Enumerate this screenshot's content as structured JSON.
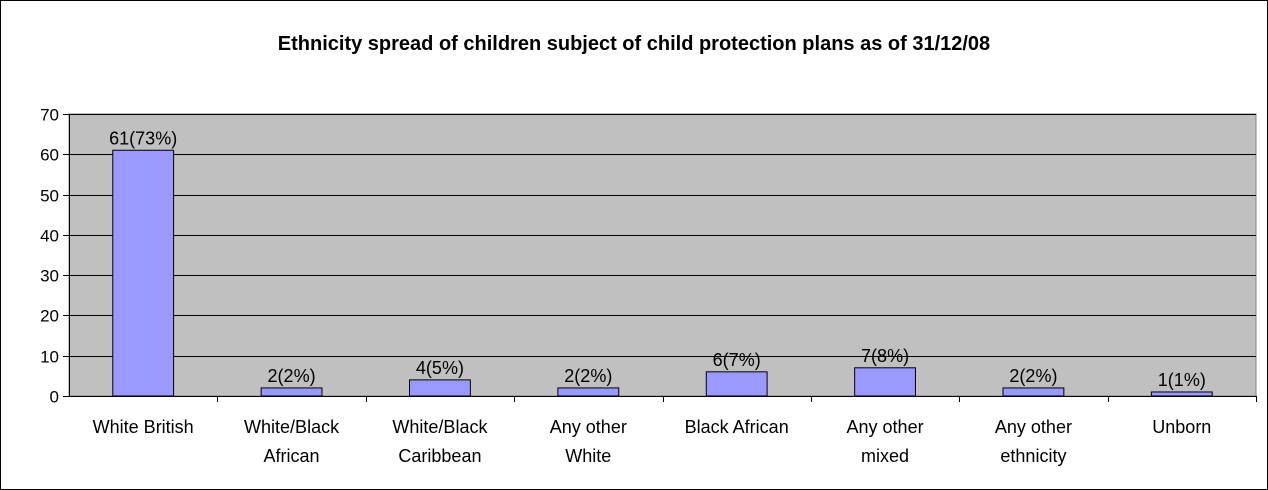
{
  "chart_data": {
    "type": "bar",
    "title": "Ethnicity spread of children subject of child protection plans as of 31/12/08",
    "xlabel": "",
    "ylabel": "",
    "ylim": [
      0,
      70
    ],
    "yticks": [
      "0",
      "10",
      "20",
      "30",
      "40",
      "50",
      "60",
      "70"
    ],
    "grid": true,
    "legend": "none",
    "categories": [
      [
        "White British"
      ],
      [
        "White/Black",
        "African"
      ],
      [
        "White/Black",
        "Caribbean"
      ],
      [
        "Any other",
        "White"
      ],
      [
        "Black African"
      ],
      [
        "Any other",
        "mixed"
      ],
      [
        "Any other",
        "ethnicity"
      ],
      [
        "Unborn"
      ]
    ],
    "values": [
      61,
      2,
      4,
      2,
      6,
      7,
      2,
      1
    ],
    "data_labels": [
      "61(73%)",
      "2(2%)",
      "4(5%)",
      "2(2%)",
      "6(7%)",
      "7(8%)",
      "2(2%)",
      "1(1%)"
    ],
    "colors": {
      "bar": "#9999ff",
      "plot_bg": "#c0c0c0",
      "grid": "#000000"
    }
  }
}
